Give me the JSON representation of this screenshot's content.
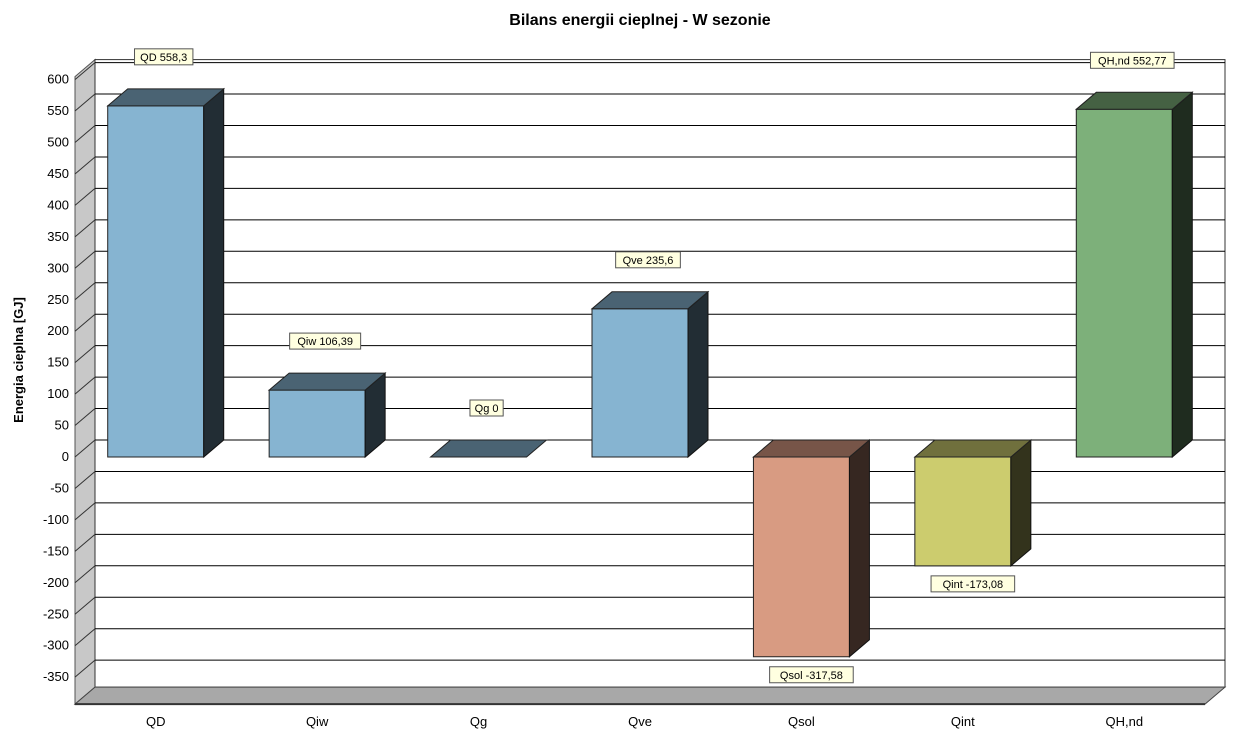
{
  "chart_data": {
    "type": "bar",
    "title": "Bilans energii cieplnej - W sezonie",
    "xlabel": "",
    "ylabel": "Energia cieplna [GJ]",
    "ylim": [
      -350,
      600
    ],
    "yticks": [
      600,
      550,
      500,
      450,
      400,
      350,
      300,
      250,
      200,
      150,
      100,
      50,
      0,
      -50,
      -100,
      -150,
      -200,
      -250,
      -300,
      -350
    ],
    "categories": [
      "QD",
      "Qiw",
      "Qg",
      "Qve",
      "Qsol",
      "Qint",
      "QH,nd"
    ],
    "values": [
      558.3,
      106.39,
      0,
      235.6,
      -317.58,
      -173.08,
      552.77
    ],
    "data_labels": [
      "QD 558,3",
      "Qiw 106,39",
      "Qg 0",
      "Qve 235,6",
      "Qsol -317,58",
      "Qint -173,08",
      "QH,nd 552,77"
    ],
    "colors": {
      "positive_bar": "#86b4d1",
      "negative_bar_qsol": "#d89b82",
      "negative_bar_qint": "#cccc6e",
      "result_bar": "#7db07a",
      "label_box": "#ffffe0"
    },
    "grid": true,
    "legend": "none"
  }
}
